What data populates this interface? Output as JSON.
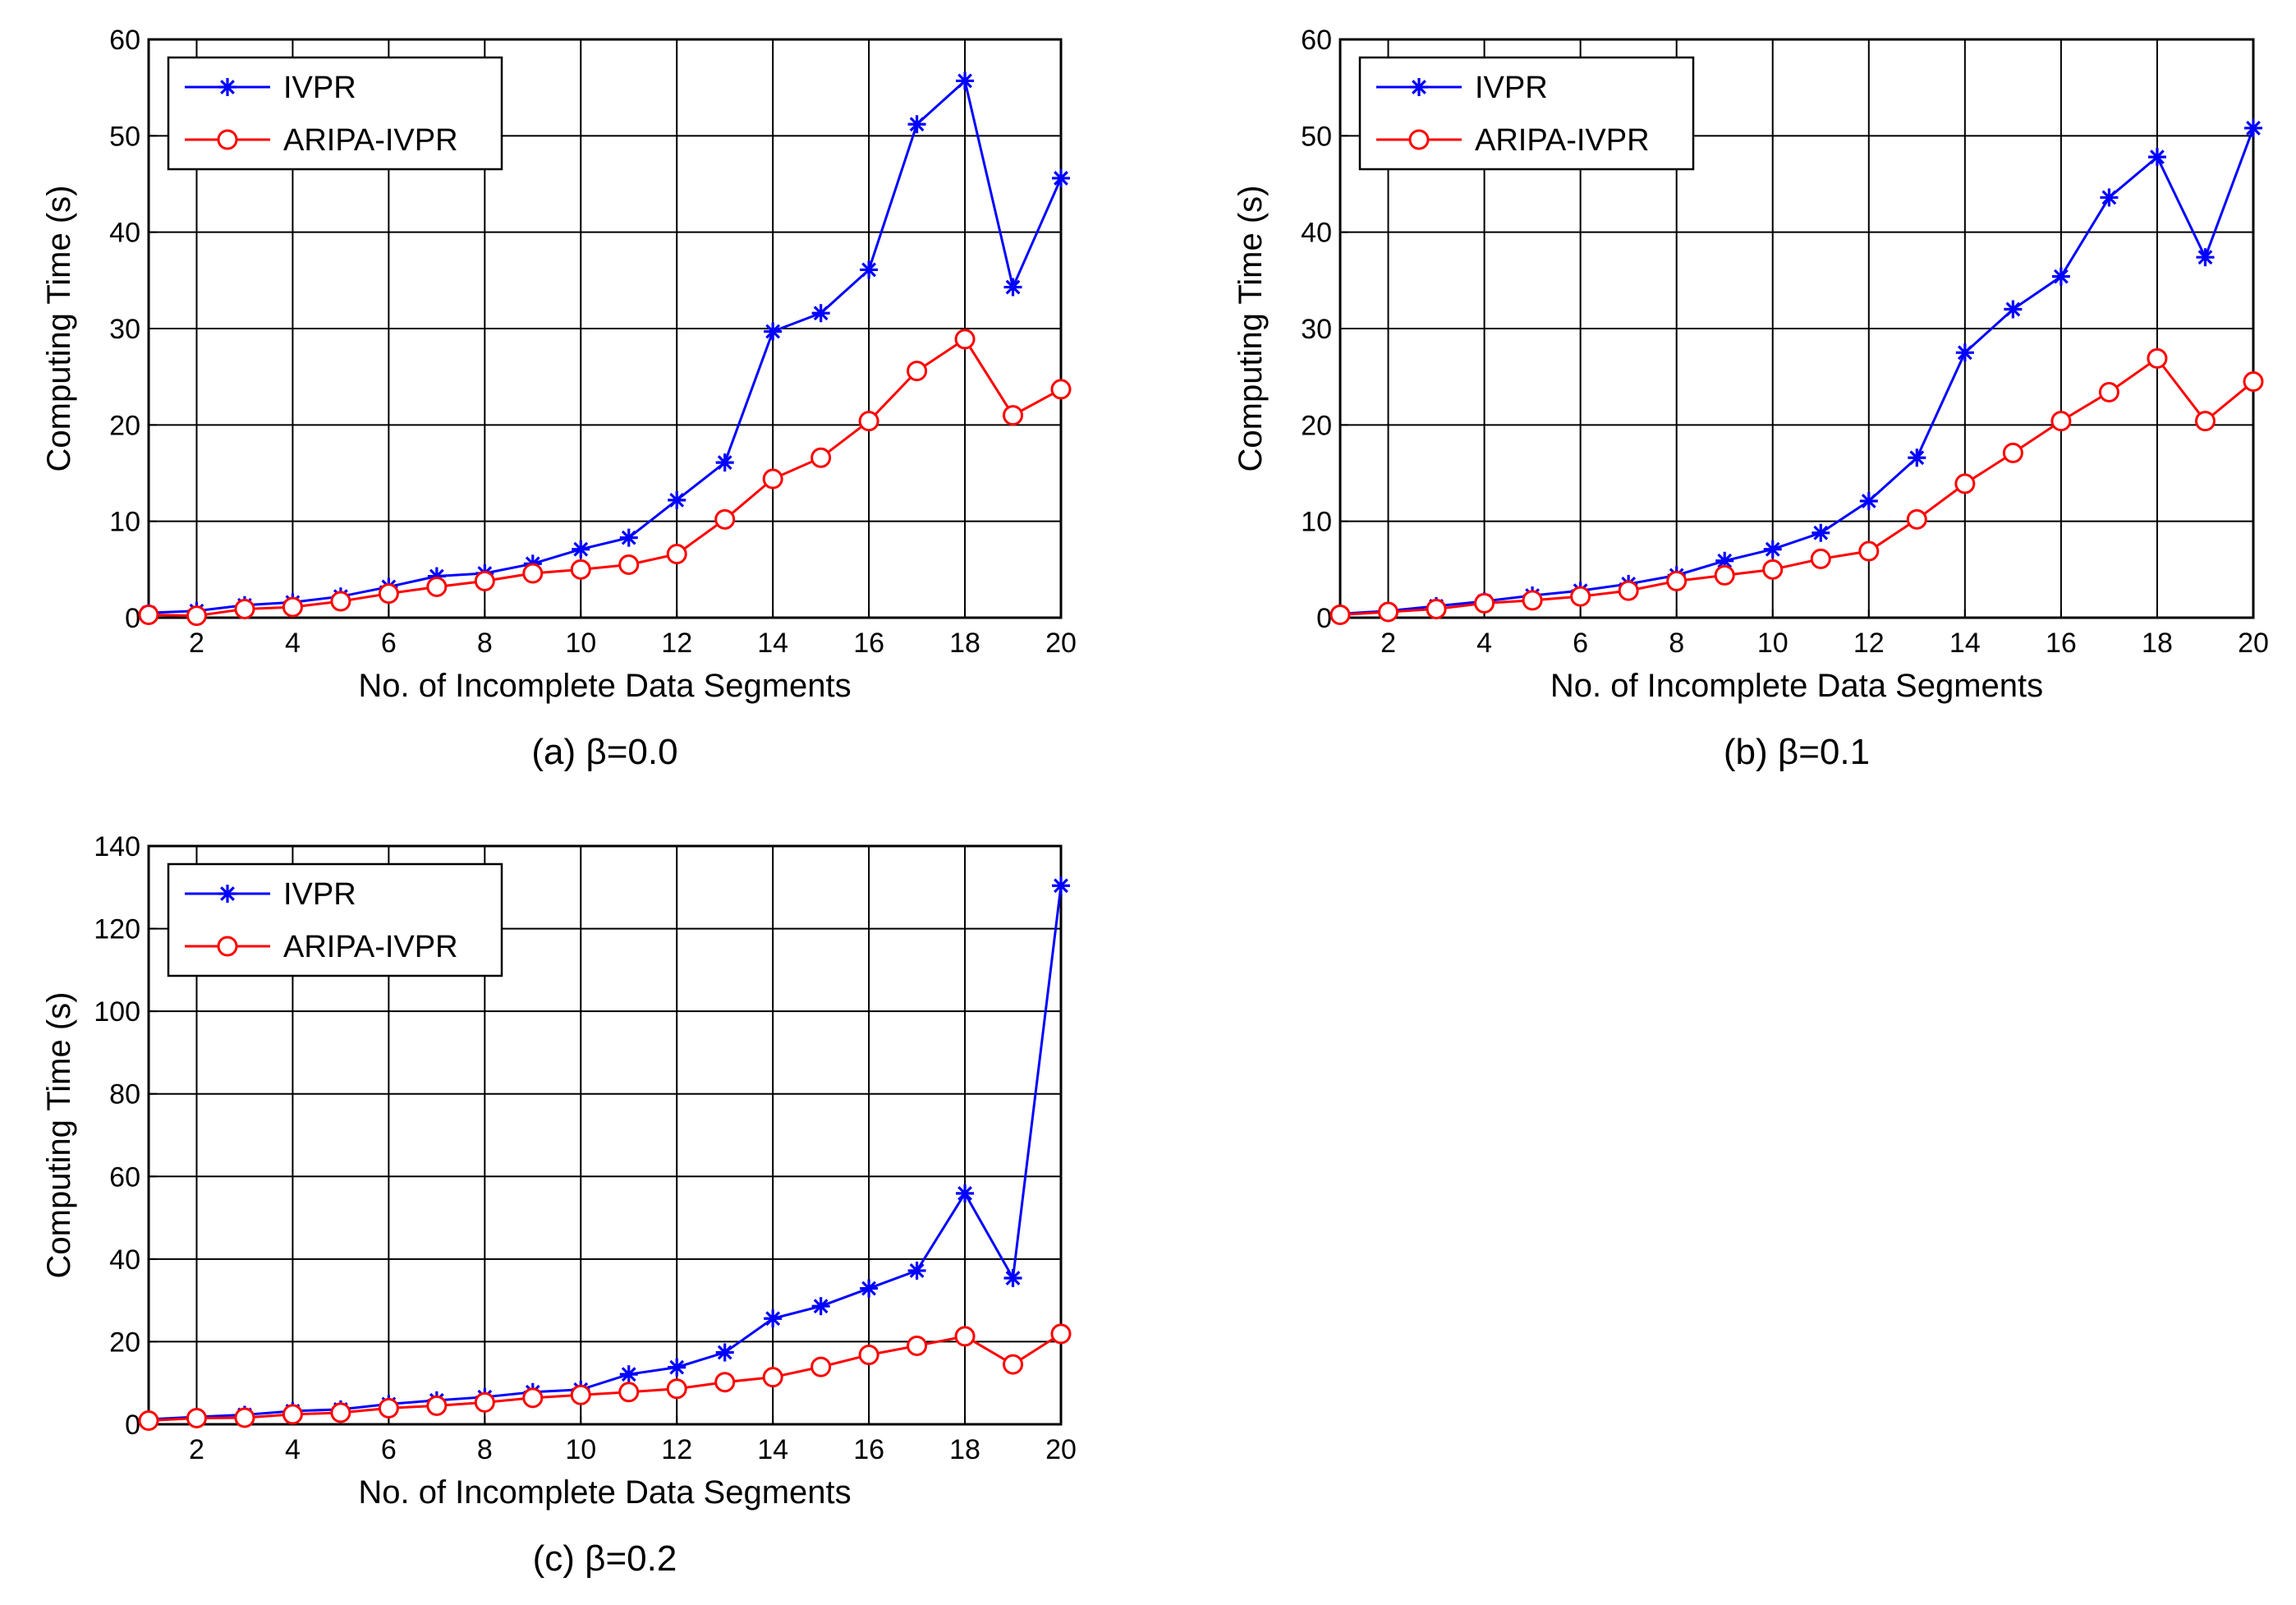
{
  "figure_title": "",
  "chart_data": [
    {
      "type": "line",
      "caption": "(a) β=0.0",
      "xlabel": "No. of Incomplete Data Segments",
      "ylabel": "Computing Time (s)",
      "xlim": [
        1,
        20
      ],
      "ylim": [
        0,
        60
      ],
      "xticks": [
        2,
        4,
        6,
        8,
        10,
        12,
        14,
        16,
        18,
        20
      ],
      "yticks": [
        0,
        10,
        20,
        30,
        40,
        50,
        60
      ],
      "grid": true,
      "legend_position": "top-left",
      "x": [
        1,
        2,
        3,
        4,
        5,
        6,
        7,
        8,
        9,
        10,
        11,
        12,
        13,
        14,
        15,
        16,
        17,
        18,
        19,
        20
      ],
      "series": [
        {
          "name": "IVPR",
          "color": "#0000ff",
          "marker": "star",
          "values": [
            0.5,
            0.7,
            1.3,
            1.6,
            2.2,
            3.2,
            4.3,
            4.6,
            5.6,
            7.1,
            8.3,
            12.2,
            16.1,
            29.7,
            31.6,
            36.1,
            51.2,
            55.7,
            34.3,
            45.6
          ]
        },
        {
          "name": "ARIPA-IVPR",
          "color": "#ff0000",
          "marker": "circle",
          "values": [
            0.3,
            0.2,
            0.9,
            1.1,
            1.7,
            2.5,
            3.2,
            3.8,
            4.6,
            5.0,
            5.5,
            6.6,
            10.2,
            14.4,
            16.6,
            20.4,
            25.6,
            28.9,
            21.0,
            23.7
          ]
        }
      ]
    },
    {
      "type": "line",
      "caption": "(b) β=0.1",
      "xlabel": "No. of Incomplete Data Segments",
      "ylabel": "Computing Time (s)",
      "xlim": [
        1,
        20
      ],
      "ylim": [
        0,
        60
      ],
      "xticks": [
        2,
        4,
        6,
        8,
        10,
        12,
        14,
        16,
        18,
        20
      ],
      "yticks": [
        0,
        10,
        20,
        30,
        40,
        50,
        60
      ],
      "grid": true,
      "legend_position": "top-left",
      "x": [
        1,
        2,
        3,
        4,
        5,
        6,
        7,
        8,
        9,
        10,
        11,
        12,
        13,
        14,
        15,
        16,
        17,
        18,
        19,
        20
      ],
      "series": [
        {
          "name": "IVPR",
          "color": "#0000ff",
          "marker": "star",
          "values": [
            0.4,
            0.7,
            1.2,
            1.7,
            2.3,
            2.8,
            3.5,
            4.4,
            5.9,
            7.1,
            8.8,
            12.1,
            16.6,
            27.5,
            32.0,
            35.4,
            43.6,
            47.8,
            37.4,
            50.8
          ]
        },
        {
          "name": "ARIPA-IVPR",
          "color": "#ff0000",
          "marker": "circle",
          "values": [
            0.3,
            0.6,
            0.9,
            1.5,
            1.8,
            2.2,
            2.8,
            3.8,
            4.4,
            5.0,
            6.1,
            6.9,
            10.2,
            13.9,
            17.1,
            20.4,
            23.4,
            26.9,
            20.4,
            24.5
          ]
        }
      ]
    },
    {
      "type": "line",
      "caption": "(c) β=0.2",
      "xlabel": "No. of Incomplete Data Segments",
      "ylabel": "Computing Time (s)",
      "xlim": [
        1,
        20
      ],
      "ylim": [
        0,
        140
      ],
      "xticks": [
        2,
        4,
        6,
        8,
        10,
        12,
        14,
        16,
        18,
        20
      ],
      "yticks": [
        0,
        20,
        40,
        60,
        80,
        100,
        120,
        140
      ],
      "grid": true,
      "legend_position": "top-left",
      "x": [
        1,
        2,
        3,
        4,
        5,
        6,
        7,
        8,
        9,
        10,
        11,
        12,
        13,
        14,
        15,
        16,
        17,
        18,
        19,
        20
      ],
      "series": [
        {
          "name": "IVPR",
          "color": "#0000ff",
          "marker": "star",
          "values": [
            1.2,
            1.8,
            2.3,
            3.2,
            3.6,
            4.9,
            5.8,
            6.6,
            7.8,
            8.4,
            12.1,
            13.8,
            17.4,
            25.6,
            28.6,
            32.9,
            37.2,
            55.9,
            35.4,
            130.4
          ]
        },
        {
          "name": "ARIPA-IVPR",
          "color": "#ff0000",
          "marker": "circle",
          "values": [
            0.9,
            1.5,
            1.6,
            2.4,
            2.8,
            3.9,
            4.5,
            5.3,
            6.4,
            7.1,
            7.8,
            8.6,
            10.2,
            11.4,
            13.9,
            16.8,
            19.0,
            21.3,
            14.5,
            21.9
          ]
        }
      ]
    }
  ]
}
